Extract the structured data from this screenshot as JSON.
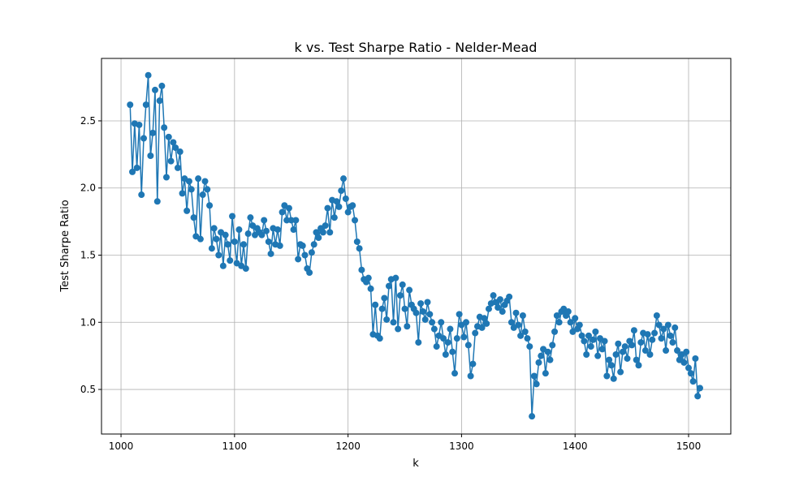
{
  "chart_data": {
    "type": "line",
    "title": "k vs. Test Sharpe Ratio - Nelder-Mead",
    "x_label": "k",
    "y_label": "Test Sharpe Ratio",
    "color": "#1f77b4",
    "grid": true,
    "x": [
      1008,
      1010,
      1012,
      1014,
      1016,
      1018,
      1020,
      1022,
      1024,
      1026,
      1028,
      1030,
      1032,
      1034,
      1036,
      1038,
      1040,
      1042,
      1044,
      1046,
      1048,
      1050,
      1052,
      1054,
      1056,
      1058,
      1060,
      1062,
      1064,
      1066,
      1068,
      1070,
      1072,
      1074,
      1076,
      1078,
      1080,
      1082,
      1084,
      1086,
      1088,
      1090,
      1092,
      1094,
      1096,
      1098,
      1100,
      1102,
      1104,
      1106,
      1108,
      1110,
      1112,
      1114,
      1116,
      1118,
      1120,
      1122,
      1124,
      1126,
      1128,
      1130,
      1132,
      1134,
      1136,
      1138,
      1140,
      1142,
      1144,
      1146,
      1148,
      1150,
      1152,
      1154,
      1156,
      1158,
      1160,
      1162,
      1164,
      1166,
      1168,
      1170,
      1172,
      1174,
      1176,
      1178,
      1180,
      1182,
      1184,
      1186,
      1188,
      1190,
      1192,
      1194,
      1196,
      1198,
      1200,
      1202,
      1204,
      1206,
      1208,
      1210,
      1212,
      1214,
      1216,
      1218,
      1220,
      1222,
      1224,
      1226,
      1228,
      1230,
      1232,
      1234,
      1236,
      1238,
      1240,
      1242,
      1244,
      1246,
      1248,
      1250,
      1252,
      1254,
      1256,
      1258,
      1260,
      1262,
      1264,
      1266,
      1268,
      1270,
      1272,
      1274,
      1276,
      1278,
      1280,
      1282,
      1284,
      1286,
      1288,
      1290,
      1292,
      1294,
      1296,
      1298,
      1300,
      1302,
      1304,
      1306,
      1308,
      1310,
      1312,
      1314,
      1316,
      1318,
      1320,
      1322,
      1324,
      1326,
      1328,
      1330,
      1332,
      1334,
      1336,
      1338,
      1340,
      1342,
      1344,
      1346,
      1348,
      1350,
      1352,
      1354,
      1356,
      1358,
      1360,
      1362,
      1364,
      1366,
      1368,
      1370,
      1372,
      1374,
      1376,
      1378,
      1380,
      1382,
      1384,
      1386,
      1388,
      1390,
      1392,
      1394,
      1396,
      1398,
      1400,
      1402,
      1404,
      1406,
      1408,
      1410,
      1412,
      1414,
      1416,
      1418,
      1420,
      1422,
      1424,
      1426,
      1428,
      1430,
      1432,
      1434,
      1436,
      1438,
      1440,
      1442,
      1444,
      1446,
      1448,
      1450,
      1452,
      1454,
      1456,
      1458,
      1460,
      1462,
      1464,
      1466,
      1468,
      1470,
      1472,
      1474,
      1476,
      1478,
      1480,
      1482,
      1484,
      1486,
      1488,
      1490,
      1492,
      1494,
      1496,
      1498,
      1500,
      1502,
      1504,
      1506,
      1508,
      1510
    ],
    "values": [
      2.62,
      2.12,
      2.48,
      2.15,
      2.47,
      1.95,
      2.37,
      2.62,
      2.84,
      2.24,
      2.41,
      2.73,
      1.9,
      2.65,
      2.76,
      2.45,
      2.08,
      2.38,
      2.2,
      2.34,
      2.3,
      2.15,
      2.27,
      1.96,
      2.07,
      1.83,
      2.05,
      1.99,
      1.78,
      1.64,
      2.07,
      1.62,
      1.95,
      2.05,
      1.99,
      1.87,
      1.55,
      1.7,
      1.62,
      1.5,
      1.67,
      1.42,
      1.65,
      1.58,
      1.46,
      1.79,
      1.6,
      1.44,
      1.69,
      1.42,
      1.58,
      1.4,
      1.66,
      1.78,
      1.72,
      1.65,
      1.7,
      1.67,
      1.65,
      1.76,
      1.68,
      1.6,
      1.51,
      1.7,
      1.58,
      1.69,
      1.57,
      1.82,
      1.87,
      1.76,
      1.85,
      1.76,
      1.69,
      1.76,
      1.47,
      1.58,
      1.57,
      1.5,
      1.4,
      1.37,
      1.52,
      1.58,
      1.67,
      1.63,
      1.7,
      1.67,
      1.72,
      1.85,
      1.67,
      1.91,
      1.78,
      1.9,
      1.86,
      1.98,
      2.07,
      1.92,
      1.82,
      1.86,
      1.87,
      1.76,
      1.6,
      1.55,
      1.39,
      1.32,
      1.3,
      1.33,
      1.25,
      0.91,
      1.13,
      0.9,
      0.88,
      1.1,
      1.18,
      1.02,
      1.27,
      1.32,
      1.0,
      1.33,
      0.95,
      1.2,
      1.28,
      1.1,
      0.97,
      1.24,
      1.13,
      1.1,
      1.07,
      0.85,
      1.14,
      1.08,
      1.02,
      1.15,
      1.06,
      1.0,
      0.95,
      0.82,
      0.9,
      1.0,
      0.88,
      0.76,
      0.85,
      0.95,
      0.78,
      0.62,
      0.88,
      1.06,
      0.98,
      0.89,
      1.0,
      0.83,
      0.6,
      0.69,
      0.92,
      0.97,
      1.04,
      0.96,
      1.03,
      0.99,
      1.1,
      1.14,
      1.2,
      1.15,
      1.11,
      1.17,
      1.08,
      1.13,
      1.16,
      1.19,
      1.0,
      0.96,
      1.07,
      0.98,
      0.9,
      1.05,
      0.93,
      0.88,
      0.82,
      0.3,
      0.6,
      0.54,
      0.7,
      0.75,
      0.8,
      0.62,
      0.78,
      0.72,
      0.83,
      0.93,
      1.05,
      1.0,
      1.08,
      1.1,
      1.05,
      1.08,
      1.0,
      0.93,
      1.03,
      0.95,
      0.98,
      0.9,
      0.86,
      0.76,
      0.9,
      0.82,
      0.87,
      0.93,
      0.75,
      0.88,
      0.8,
      0.86,
      0.6,
      0.72,
      0.68,
      0.58,
      0.76,
      0.84,
      0.63,
      0.78,
      0.82,
      0.73,
      0.86,
      0.83,
      0.94,
      0.72,
      0.68,
      0.85,
      0.92,
      0.79,
      0.91,
      0.76,
      0.87,
      0.92,
      1.05,
      0.98,
      0.88,
      0.95,
      0.79,
      0.98,
      0.9,
      0.85,
      0.96,
      0.79,
      0.72,
      0.76,
      0.7,
      0.78,
      0.66,
      0.62,
      0.56,
      0.73,
      0.45,
      0.51
    ],
    "xlim": [
      982.8,
      1537.2
    ],
    "ylim": [
      0.168,
      2.965
    ],
    "xticks": [
      1000,
      1100,
      1200,
      1300,
      1400,
      1500
    ],
    "yticks": [
      0.5,
      {
        "value": 1,
        "label": "1.0"
      },
      1.5,
      {
        "value": 2,
        "label": "2.0"
      },
      2.5
    ]
  }
}
